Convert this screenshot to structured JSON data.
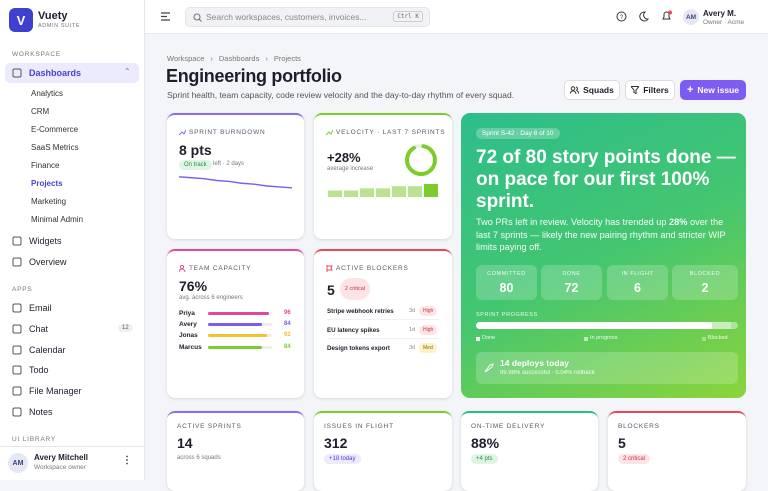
{
  "sidebar": {
    "brand": {
      "initial": "V",
      "name": "Vuety",
      "tagline": "ADMIN SUITE"
    },
    "workspace_label": "WORKSPACE",
    "dashboards": "Dashboards",
    "sub_items": [
      "Analytics",
      "CRM",
      "E-Commerce",
      "SaaS Metrics",
      "Finance",
      "Projects",
      "Marketing",
      "Minimal Admin"
    ],
    "active_sub": "Projects",
    "items": [
      "Widgets",
      "Overview"
    ],
    "apps_label": "APPS",
    "apps": [
      {
        "label": "Email"
      },
      {
        "label": "Chat",
        "badge": 12
      },
      {
        "label": "Calendar"
      },
      {
        "label": "Todo"
      },
      {
        "label": "File Manager"
      },
      {
        "label": "Notes"
      }
    ],
    "ui_label": "UI LIBRARY",
    "user": {
      "initials": "AM",
      "name": "Avery Mitchell",
      "role": "Workspace owner"
    }
  },
  "topbar": {
    "search_placeholder": "Search workspaces, customers, invoices...",
    "shortcut": "Ctrl K",
    "user": {
      "initials": "AM",
      "name": "Avery M.",
      "role": "Owner · Acme"
    }
  },
  "header": {
    "breadcrumb": [
      "Workspace",
      "Dashboards",
      "Projects"
    ],
    "title": "Engineering portfolio",
    "subtitle": "Sprint health, team capacity, code review velocity and the day-to-day rhythm of every squad.",
    "buttons": [
      "Squads",
      "Filters",
      "New issue"
    ]
  },
  "burndown": {
    "label": "SPRINT BURNDOWN",
    "value": "8 pts",
    "chip": "On track",
    "note": "left · 2 days",
    "values": [
      30,
      29,
      28,
      26,
      25,
      23,
      22,
      20,
      19,
      18
    ],
    "ylim": [
      8,
      32
    ]
  },
  "velocity": {
    "label": "VELOCITY · LAST 7 SPRINTS",
    "value": "+28%",
    "note": "average increase",
    "values": [
      3,
      3,
      4,
      4,
      5,
      5,
      6
    ],
    "ylim": [
      0,
      6
    ]
  },
  "capacity": {
    "label": "TEAM CAPACITY",
    "value": "76%",
    "note": "avg. across 6 engineers",
    "rows": [
      {
        "name": "Priya",
        "value": 96,
        "color": "#e0479e"
      },
      {
        "name": "Avery",
        "value": 84,
        "color": "#7c5cf0"
      },
      {
        "name": "Jonas",
        "value": 92,
        "color": "#f2c230"
      },
      {
        "name": "Marcus",
        "value": 84,
        "color": "#7ccc2e"
      }
    ],
    "xlim": [
      0,
      100
    ]
  },
  "blockers": {
    "label": "ACTIVE BLOCKERS",
    "value": "5",
    "chip": "2 critical",
    "rows": [
      {
        "title": "Stripe webhook retries",
        "age": "3d",
        "severity": "High"
      },
      {
        "title": "EU latency spikes",
        "age": "1d",
        "severity": "High"
      },
      {
        "title": "Design tokens export",
        "age": "3d",
        "severity": "Med"
      }
    ]
  },
  "hero": {
    "chip": "Sprint S-42 · Day 8 of 10",
    "headline": "72 of 80 story points done — on pace for our first 100% sprint.",
    "text_before": "Two PRs left in review. Velocity has trended up ",
    "text_bold": "28%",
    "text_after": " over the last 7 sprints — likely the new pairing rhythm and stricter WIP limits paying off.",
    "stats": [
      {
        "label": "COMMITTED",
        "value": 80
      },
      {
        "label": "DONE",
        "value": 72
      },
      {
        "label": "IN FLIGHT",
        "value": 6
      },
      {
        "label": "BLOCKED",
        "value": 2
      }
    ],
    "progress_label": "SPRINT PROGRESS",
    "legend": [
      "Done",
      "In progress",
      "Blocked"
    ],
    "deploy_title": "14 deploys today",
    "deploy_note": "99.98% successful · 0.04% rollback"
  },
  "kpis": [
    {
      "label": "ACTIVE SPRINTS",
      "value": "14",
      "note": "across 6 squads",
      "color": "#8b6cf0"
    },
    {
      "label": "ISSUES IN FLIGHT",
      "value": "312",
      "chip": "+18 today",
      "color": "#7ccc2e"
    },
    {
      "label": "ON-TIME DELIVERY",
      "value": "88%",
      "chip": "+4 pts",
      "color": "#2dbf7a"
    },
    {
      "label": "BLOCKERS",
      "value": "5",
      "chip": "2 critical",
      "color": "#e8485d"
    }
  ]
}
